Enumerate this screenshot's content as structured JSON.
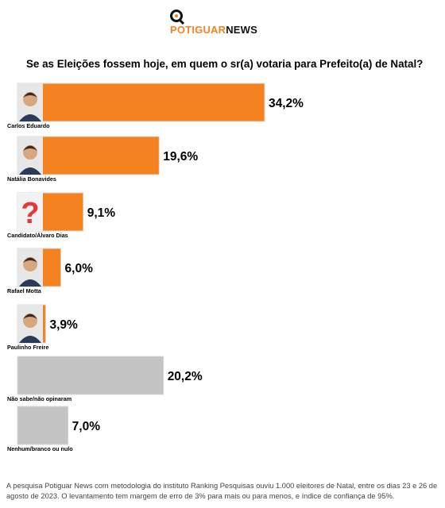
{
  "brand": {
    "name_part1": "POTIGUAR",
    "name_part2": "NEWS",
    "logo_icon": "magnifier-q-icon"
  },
  "question": "Se as Eleições fossem hoje, em quem o sr(a) votaria para Prefeito(a) de Natal?",
  "footer": "A pesquisa Potiguar News com metodologia do instituto Ranking Pesquisas ouviu 1.000 eleitores de Natal, entre os dias 23 e 26 de agosto de 2023. O levantamento tem margem de erro de 3% para mais ou para menos, e índice de confiança de 95%.",
  "colors": {
    "accent": "#F58220",
    "gray_bar": "#C4C4C4",
    "question_mark": "#E53935"
  },
  "chart_data": {
    "type": "bar",
    "orientation": "horizontal",
    "title": "Se as Eleições fossem hoje, em quem o sr(a) votaria para Prefeito(a) de Natal?",
    "categories": [
      "Carlos Eduardo",
      "Natália Bonavides",
      "Candidato/Álvaro Dias",
      "Rafael Motta",
      "Paulinho Freire",
      "Não sabe/não opinaram",
      "Nenhum/branco ou nulo"
    ],
    "values": [
      34.2,
      19.6,
      9.1,
      6.0,
      3.9,
      20.2,
      7.0
    ],
    "value_labels": [
      "34,2%",
      "19,6%",
      "9,1%",
      "6,0%",
      "3,9%",
      "20,2%",
      "7,0%"
    ],
    "bar_colors": [
      "#F58220",
      "#F58220",
      "#F58220",
      "#F58220",
      "#F58220",
      "#C4C4C4",
      "#C4C4C4"
    ],
    "avatars": [
      "candidate-photo",
      "candidate-photo",
      "question-mark-icon",
      "candidate-photo",
      "candidate-photo",
      "",
      ""
    ],
    "unit": "%",
    "grid": false,
    "legend": "none"
  }
}
